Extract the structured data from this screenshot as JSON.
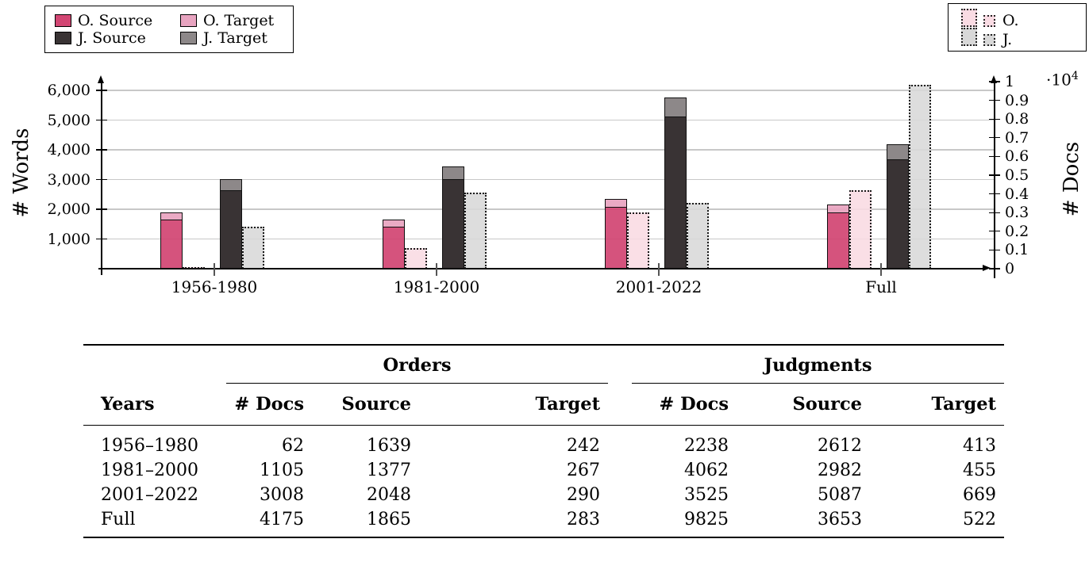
{
  "colors": {
    "o_source": "#d24673",
    "o_target": "#e8a4c0",
    "j_source": "#393334",
    "j_target": "#8d8889",
    "o_docs_fill": "#f9dbe3",
    "j_docs_fill": "#d8d8d8",
    "grid": "#c8c8c8",
    "axis": "#000000"
  },
  "legend_words": {
    "items": [
      {
        "label": "O. Source",
        "color_key": "o_source"
      },
      {
        "label": "O. Target",
        "color_key": "o_target"
      },
      {
        "label": "J. Source",
        "color_key": "j_source"
      },
      {
        "label": "J. Target",
        "color_key": "j_target"
      }
    ]
  },
  "legend_docs": {
    "items": [
      {
        "label": "O.",
        "color_key": "o_docs_fill"
      },
      {
        "label": "J.",
        "color_key": "j_docs_fill"
      }
    ]
  },
  "chart_data": {
    "type": "bar",
    "title": "",
    "categories": [
      "1956-1980",
      "1981-2000",
      "2001-2022",
      "Full"
    ],
    "left_axis": {
      "label": "# Words",
      "tick_labels": [
        "1,000",
        "2,000",
        "3,000",
        "4,000",
        "5,000",
        "6,000"
      ],
      "tick_values": [
        1000,
        2000,
        3000,
        4000,
        5000,
        6000
      ],
      "range": [
        0,
        6450
      ],
      "grid": "on"
    },
    "right_axis": {
      "label": "# Docs",
      "multiplier_base": "·10",
      "multiplier_exp": "4",
      "tick_labels": [
        "0",
        "0.1",
        "0.2",
        "0.3",
        "0.4",
        "0.5",
        "0.6",
        "0.7",
        "0.8",
        "0.9",
        "1"
      ],
      "tick_values": [
        0,
        1000,
        2000,
        3000,
        4000,
        5000,
        6000,
        7000,
        8000,
        9000,
        10000
      ],
      "range": [
        0,
        10600
      ]
    },
    "series": [
      {
        "name": "O. Source",
        "unit": "words",
        "role": "stack_base",
        "group": "orders",
        "style": "solid",
        "color_key": "o_source",
        "values": [
          1639,
          1377,
          2048,
          1865
        ]
      },
      {
        "name": "O. Target",
        "unit": "words",
        "role": "stack_top",
        "group": "orders",
        "style": "solid",
        "color_key": "o_target",
        "values": [
          242,
          267,
          290,
          283
        ]
      },
      {
        "name": "J. Source",
        "unit": "words",
        "role": "stack_base",
        "group": "judgments",
        "style": "solid",
        "color_key": "j_source",
        "values": [
          2612,
          2982,
          5087,
          3653
        ]
      },
      {
        "name": "J. Target",
        "unit": "words",
        "role": "stack_top",
        "group": "judgments",
        "style": "solid",
        "color_key": "j_target",
        "values": [
          413,
          455,
          669,
          522
        ]
      },
      {
        "name": "O. # Docs",
        "unit": "docs",
        "role": "single",
        "group": "orders",
        "style": "dotted",
        "color_key": "o_docs_fill",
        "values": [
          62,
          1105,
          3008,
          4175
        ]
      },
      {
        "name": "J. # Docs",
        "unit": "docs",
        "role": "single",
        "group": "judgments",
        "style": "dotted",
        "color_key": "j_docs_fill",
        "values": [
          2238,
          4062,
          3525,
          9825
        ]
      }
    ],
    "legend_position": "top"
  },
  "table": {
    "group_headers": {
      "orders": "Orders",
      "judgments": "Judgments"
    },
    "col_headers": {
      "years": "Years",
      "o_docs": "# Docs",
      "o_source": "Source",
      "o_target": "Target",
      "j_docs": "# Docs",
      "j_source": "Source",
      "j_target": "Target"
    },
    "rows": [
      [
        "1956–1980",
        "62",
        "1639",
        "242",
        "2238",
        "2612",
        "413"
      ],
      [
        "1981–2000",
        "1105",
        "1377",
        "267",
        "4062",
        "2982",
        "455"
      ],
      [
        "2001–2022",
        "3008",
        "2048",
        "290",
        "3525",
        "5087",
        "669"
      ],
      [
        "Full",
        "4175",
        "1865",
        "283",
        "9825",
        "3653",
        "522"
      ]
    ]
  }
}
